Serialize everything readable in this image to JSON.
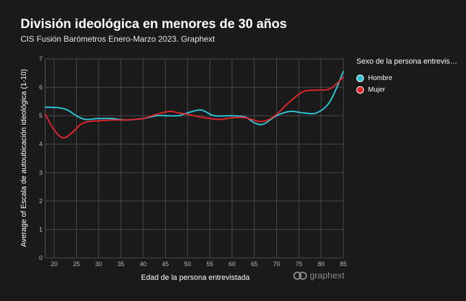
{
  "title": "División ideológica en menores de 30 años",
  "subtitle": "CIS Fusión Barómetros Enero-Marzo 2023. Graphext",
  "legend": {
    "title": "Sexo de la persona entrevis…",
    "items": [
      {
        "label": "Hombre",
        "color": "#2ec4d6"
      },
      {
        "label": "Mujer",
        "color": "#e0262b"
      }
    ]
  },
  "watermark": "graphext",
  "chart_data": {
    "type": "line",
    "title": "División ideológica en menores de 30 años",
    "xlabel": "Edad de la persona entrevistada",
    "ylabel": "Average of Escala de autoubicación ideológica (1-10)",
    "xlim": [
      18,
      85
    ],
    "ylim": [
      0,
      7
    ],
    "xticks": [
      20,
      25,
      30,
      35,
      40,
      45,
      50,
      55,
      60,
      65,
      70,
      75,
      80,
      85
    ],
    "yticks": [
      0,
      1,
      2,
      3,
      4,
      5,
      6,
      7
    ],
    "grid": true,
    "legend_position": "right",
    "series": [
      {
        "name": "Hombre",
        "color": "#2ec4d6",
        "x": [
          18,
          21,
          23,
          25,
          27,
          30,
          33,
          36,
          40,
          43,
          45,
          48,
          50,
          53,
          56,
          60,
          63,
          65,
          67,
          70,
          73,
          76,
          79,
          82,
          85
        ],
        "y": [
          5.3,
          5.28,
          5.2,
          5.0,
          4.87,
          4.9,
          4.9,
          4.85,
          4.9,
          5.0,
          5.0,
          5.0,
          5.1,
          5.2,
          5.0,
          5.0,
          4.95,
          4.75,
          4.7,
          5.0,
          5.15,
          5.1,
          5.1,
          5.5,
          6.55
        ]
      },
      {
        "name": "Mujer",
        "color": "#e0262b",
        "x": [
          18,
          20,
          22,
          24,
          26,
          28,
          30,
          33,
          36,
          40,
          43,
          46,
          48,
          50,
          53,
          57,
          60,
          63,
          66,
          68,
          70,
          73,
          76,
          79,
          82,
          85
        ],
        "y": [
          5.05,
          4.5,
          4.22,
          4.4,
          4.7,
          4.8,
          4.82,
          4.85,
          4.85,
          4.9,
          5.05,
          5.15,
          5.1,
          5.05,
          4.95,
          4.87,
          4.93,
          4.93,
          4.8,
          4.85,
          5.05,
          5.5,
          5.85,
          5.9,
          5.95,
          6.35
        ]
      }
    ]
  }
}
